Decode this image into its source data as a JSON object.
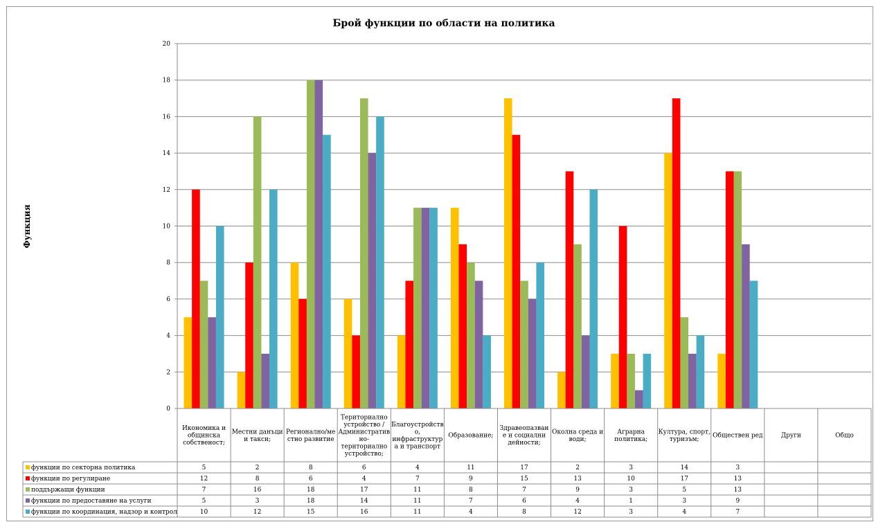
{
  "chart_data": {
    "type": "bar",
    "title": "Брой функции по области на политика",
    "ylabel": "Функция",
    "xlabel": "",
    "ylim": [
      0,
      20
    ],
    "ytick_step": 2,
    "grid": true,
    "legend": "data-table-left",
    "categories": [
      [
        "Икономика и",
        "общинска",
        "собственост;"
      ],
      [
        "Местни данъци",
        "и такси;"
      ],
      [
        "Регионално/ме",
        "стно развитие"
      ],
      [
        "Териториално",
        "устройство /",
        "Административ",
        "но-",
        "териториално",
        "устройство;"
      ],
      [
        "Благоустройств",
        "о,",
        "инфраструктур",
        "а и транспорт"
      ],
      [
        "Образование;"
      ],
      [
        "Здравеопазван",
        "е и социални",
        "дейности;"
      ],
      [
        "Околна среда и",
        "води;"
      ],
      [
        "Аграрна",
        "политика;"
      ],
      [
        "Култура, спорт,",
        "туризъм;"
      ],
      [
        "Обществен ред"
      ],
      [
        "Други"
      ],
      [
        "Общо"
      ]
    ],
    "series": [
      {
        "name": "функции по секторна политика",
        "color": "#ffc000",
        "values": [
          5,
          2,
          8,
          6,
          4,
          11,
          17,
          2,
          3,
          14,
          3,
          null,
          null
        ]
      },
      {
        "name": "функции по регулиране",
        "color": "#ff0000",
        "values": [
          12,
          8,
          6,
          4,
          7,
          9,
          15,
          13,
          10,
          17,
          13,
          null,
          null
        ]
      },
      {
        "name": "поддържащи функции",
        "color": "#9bbb59",
        "values": [
          7,
          16,
          18,
          17,
          11,
          8,
          7,
          9,
          3,
          5,
          13,
          null,
          null
        ]
      },
      {
        "name": "функции по предоставяне на услуги",
        "color": "#8064a2",
        "values": [
          5,
          3,
          18,
          14,
          11,
          7,
          6,
          4,
          1,
          3,
          9,
          null,
          null
        ]
      },
      {
        "name": "функции по координация, надзор и контрол",
        "color": "#4bacc6",
        "values": [
          10,
          12,
          15,
          16,
          11,
          4,
          8,
          12,
          3,
          4,
          7,
          null,
          null
        ]
      }
    ]
  }
}
